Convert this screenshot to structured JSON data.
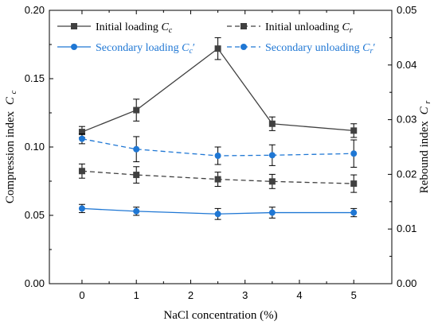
{
  "chart_data": {
    "type": "line",
    "x": [
      0,
      1,
      2.5,
      3.5,
      5
    ],
    "xlabel": "NaCl concentration (%)",
    "ylabel_left": "Compression index",
    "ylabel_left_symbol": "C",
    "ylabel_left_sub": "c",
    "ylabel_right": "Rebound index",
    "ylabel_right_symbol": "C",
    "ylabel_right_sub": "r",
    "xlim": [
      -0.6,
      5.7
    ],
    "xticks": [
      0,
      1,
      2,
      3,
      4,
      5
    ],
    "ylim_left": [
      0,
      0.2
    ],
    "yticks_left": [
      "0.00",
      "0.05",
      "0.10",
      "0.15",
      "0.20"
    ],
    "ylim_right": [
      0,
      0.05
    ],
    "yticks_right": [
      "0.00",
      "0.01",
      "0.02",
      "0.03",
      "0.04",
      "0.05"
    ],
    "grid": false,
    "legend_placement": "top",
    "series": [
      {
        "name": "Initial loading",
        "symbol": "C",
        "sub": "c",
        "prime": "",
        "axis": "left",
        "marker": "square",
        "dash": "solid",
        "color": "#404040",
        "values": [
          0.111,
          0.127,
          0.172,
          0.117,
          0.112
        ],
        "errors": [
          0.004,
          0.008,
          0.008,
          0.005,
          0.005
        ]
      },
      {
        "name": "Secondary loading",
        "symbol": "C",
        "sub": "c",
        "prime": "′",
        "axis": "left",
        "marker": "circle",
        "dash": "solid",
        "color": "#1f77d4",
        "values": [
          0.055,
          0.053,
          0.051,
          0.052,
          0.052
        ],
        "errors": [
          0.003,
          0.003,
          0.004,
          0.004,
          0.003
        ]
      },
      {
        "name": "Initial unloading",
        "symbol": "C",
        "sub": "r",
        "prime": "",
        "axis": "right",
        "marker": "square",
        "dash": "dashed",
        "color": "#404040",
        "values": [
          0.0206,
          0.0199,
          0.0191,
          0.0187,
          0.0183
        ],
        "errors": [
          0.0013,
          0.0015,
          0.0013,
          0.0013,
          0.0016
        ]
      },
      {
        "name": "Secondary unloading",
        "symbol": "C",
        "sub": "r",
        "prime": "′",
        "axis": "right",
        "marker": "circle",
        "dash": "dashed",
        "color": "#1f77d4",
        "values": [
          0.0265,
          0.0246,
          0.0234,
          0.0235,
          0.0238
        ],
        "errors": [
          0.0009,
          0.0023,
          0.0016,
          0.0019,
          0.0025
        ]
      }
    ]
  }
}
